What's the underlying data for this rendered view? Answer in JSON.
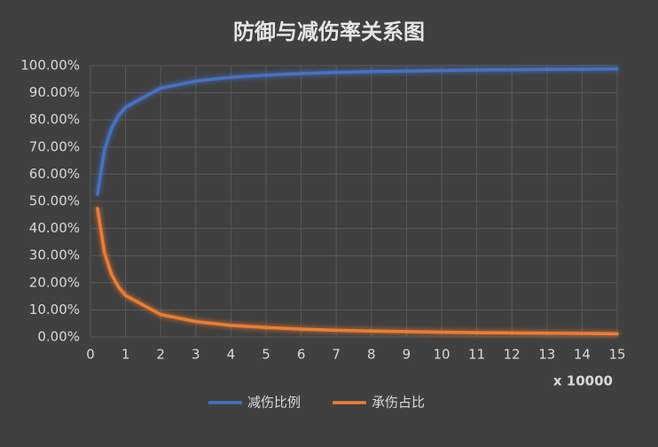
{
  "chart_data": {
    "type": "line",
    "title": "防御与减伤率关系图",
    "x_label": "x 10000",
    "x": [
      0.2,
      0.4,
      0.6,
      0.8,
      1,
      2,
      3,
      4,
      5,
      6,
      7,
      8,
      9,
      10,
      11,
      12,
      13,
      14,
      15
    ],
    "series": [
      {
        "name": "减伤比例",
        "color": "#4472c4",
        "values": [
          52.6,
          69.0,
          76.9,
          81.6,
          84.7,
          91.7,
          94.3,
          95.7,
          96.5,
          97.1,
          97.5,
          97.8,
          98.0,
          98.2,
          98.4,
          98.5,
          98.6,
          98.7,
          98.8
        ]
      },
      {
        "name": "承伤占比",
        "color": "#ed7d31",
        "values": [
          47.4,
          31.0,
          23.1,
          18.4,
          15.3,
          8.3,
          5.7,
          4.3,
          3.5,
          2.9,
          2.5,
          2.2,
          2.0,
          1.8,
          1.6,
          1.5,
          1.4,
          1.3,
          1.2
        ]
      }
    ],
    "xlim": [
      0,
      15
    ],
    "xticks": [
      0,
      1,
      2,
      3,
      4,
      5,
      6,
      7,
      8,
      9,
      10,
      11,
      12,
      13,
      14,
      15
    ],
    "ylim": [
      0,
      100
    ],
    "yticks": [
      {
        "value": 0,
        "label": "0.00%"
      },
      {
        "value": 10,
        "label": "10.00%"
      },
      {
        "value": 20,
        "label": "20.00%"
      },
      {
        "value": 30,
        "label": "30.00%"
      },
      {
        "value": 40,
        "label": "40.00%"
      },
      {
        "value": 50,
        "label": "50.00%"
      },
      {
        "value": 60,
        "label": "60.00%"
      },
      {
        "value": 70,
        "label": "70.00%"
      },
      {
        "value": 80,
        "label": "80.00%"
      },
      {
        "value": 90,
        "label": "90.00%"
      },
      {
        "value": 100,
        "label": "100.00%"
      }
    ],
    "grid": true,
    "legend": "bottom"
  }
}
